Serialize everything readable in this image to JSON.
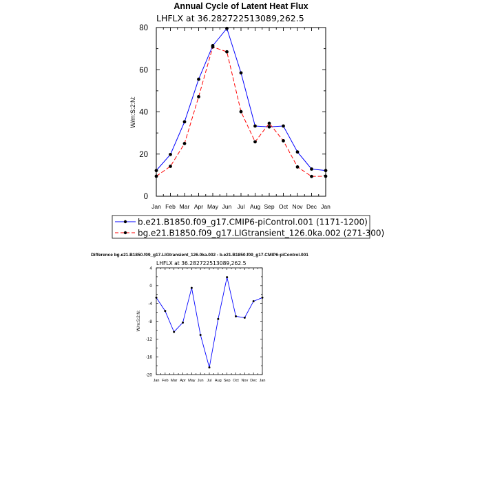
{
  "chart_data": [
    {
      "type": "line",
      "title": "Annual Cycle of Latent Heat Flux",
      "subtitle": "LHFLX at 36.282722513089,262.5",
      "ylabel": "W/m:S:2:N:",
      "xlabel": "",
      "categories": [
        "Jan",
        "Feb",
        "Mar",
        "Apr",
        "May",
        "Jun",
        "Jul",
        "Aug",
        "Sep",
        "Oct",
        "Nov",
        "Dec",
        "Jan"
      ],
      "yticks": [
        "0",
        "20",
        "40",
        "60",
        "80"
      ],
      "ylim": [
        0,
        80
      ],
      "grid": false,
      "legend_position": "bottom",
      "series": [
        {
          "name": "b.e21.B1850.f09_g17.CMIP6-piControl.001 (1171-1200)",
          "color": "#0000ff",
          "style": "solid",
          "values": [
            12.2,
            19.8,
            35.3,
            55.5,
            71.4,
            79.6,
            58.5,
            33.3,
            32.9,
            33.3,
            21.0,
            12.9,
            12.2
          ]
        },
        {
          "name": "bg.e21.B1850.f09_g17.LIGtransient_126.0ka.002 (271-300)",
          "color": "#ff0000",
          "style": "dashed",
          "values": [
            9.5,
            14.2,
            25.0,
            47.2,
            70.8,
            68.5,
            40.1,
            25.8,
            34.6,
            26.3,
            13.9,
            9.4,
            9.5
          ]
        }
      ]
    },
    {
      "type": "line",
      "title": "Difference bg.e21.B1850.f09_g17.LIGtransient_126.0ka.002 - b.e21.B1850.f09_g17.CMIP6-piControl.001",
      "subtitle": "LHFLX at 36.282722513089,262.5",
      "ylabel": "W/m:S:2:N:",
      "xlabel": "",
      "categories": [
        "Jan",
        "Feb",
        "Mar",
        "Apr",
        "May",
        "Jun",
        "Jul",
        "Aug",
        "Sep",
        "Oct",
        "Nov",
        "Dec",
        "Jan"
      ],
      "yticks": [
        "-20",
        "-16",
        "-12",
        "-8",
        "-4",
        "0",
        "4"
      ],
      "ylim": [
        -20,
        4
      ],
      "grid": false,
      "series": [
        {
          "color": "#0000ff",
          "style": "solid",
          "values": [
            -2.7,
            -5.7,
            -10.4,
            -8.3,
            -0.5,
            -11.1,
            -18.4,
            -7.5,
            1.9,
            -6.9,
            -7.2,
            -3.5,
            -2.7
          ]
        }
      ]
    }
  ]
}
